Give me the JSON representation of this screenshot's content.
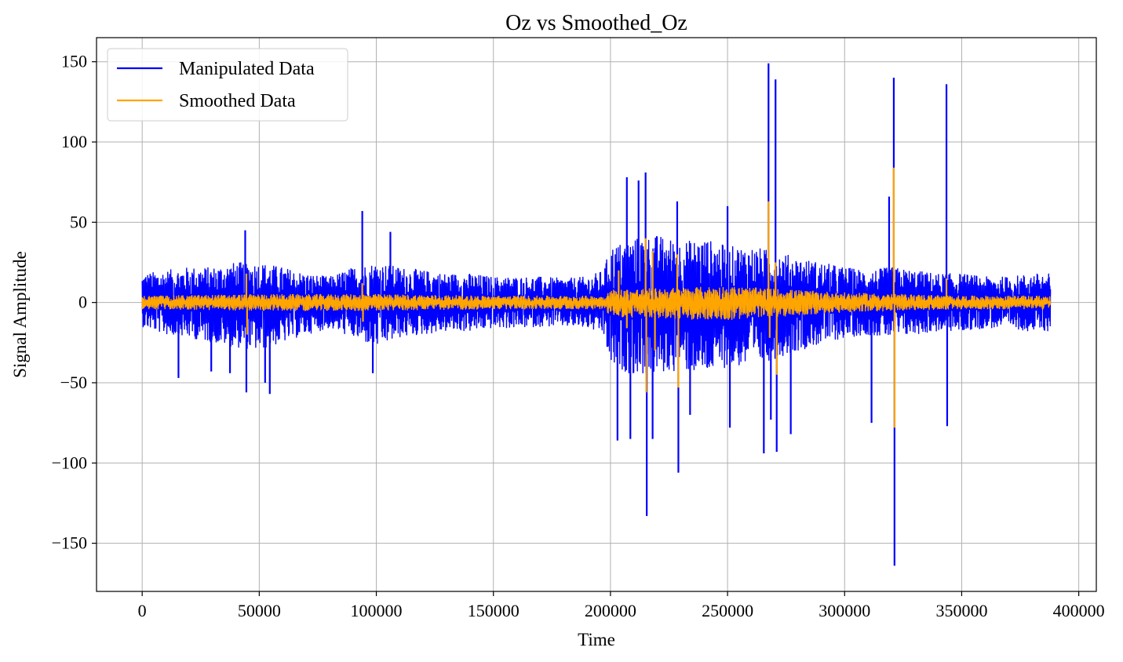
{
  "chart_data": {
    "type": "line",
    "title": "Oz vs Smoothed_Oz",
    "xlabel": "Time",
    "ylabel": "Signal Amplitude",
    "xlim": [
      -19500,
      407500
    ],
    "ylim": [
      -180,
      165
    ],
    "xticks": [
      0,
      50000,
      100000,
      150000,
      200000,
      250000,
      300000,
      350000,
      400000
    ],
    "yticks": [
      -150,
      -100,
      -50,
      0,
      50,
      100,
      150
    ],
    "xtick_labels": [
      "0",
      "50000",
      "100000",
      "150000",
      "200000",
      "250000",
      "300000",
      "350000",
      "400000"
    ],
    "ytick_labels": [
      "−150",
      "−100",
      "−50",
      "0",
      "50",
      "100",
      "150"
    ],
    "grid": true,
    "legend": "top-left",
    "x_range": [
      0,
      388000
    ],
    "series": [
      {
        "name": "Manipulated Data",
        "color": "#0000ff",
        "envelope": {
          "x": [
            0,
            10000,
            20000,
            30000,
            40000,
            50000,
            60000,
            70000,
            80000,
            90000,
            100000,
            110000,
            120000,
            130000,
            140000,
            150000,
            160000,
            170000,
            180000,
            190000,
            197000,
            200000,
            210000,
            220000,
            230000,
            240000,
            250000,
            260000,
            270000,
            280000,
            290000,
            300000,
            310000,
            320000,
            330000,
            340000,
            350000,
            360000,
            370000,
            380000,
            388000
          ],
          "upper": [
            18,
            20,
            22,
            22,
            25,
            25,
            22,
            18,
            16,
            22,
            25,
            22,
            20,
            18,
            18,
            16,
            16,
            16,
            15,
            16,
            20,
            35,
            40,
            42,
            38,
            40,
            35,
            35,
            32,
            28,
            25,
            22,
            20,
            22,
            20,
            18,
            18,
            16,
            16,
            18,
            18
          ],
          "lower": [
            -15,
            -20,
            -22,
            -25,
            -28,
            -30,
            -25,
            -20,
            -16,
            -22,
            -28,
            -22,
            -20,
            -18,
            -18,
            -16,
            -16,
            -15,
            -15,
            -16,
            -20,
            -40,
            -45,
            -45,
            -42,
            -45,
            -40,
            -40,
            -35,
            -30,
            -26,
            -22,
            -20,
            -22,
            -20,
            -18,
            -18,
            -16,
            -16,
            -18,
            -18
          ]
        },
        "spikes": [
          {
            "x": 15500,
            "y": -47
          },
          {
            "x": 29500,
            "y": -43
          },
          {
            "x": 37500,
            "y": -44
          },
          {
            "x": 44000,
            "y": 45
          },
          {
            "x": 44500,
            "y": -56
          },
          {
            "x": 54500,
            "y": -57
          },
          {
            "x": 52500,
            "y": -50
          },
          {
            "x": 94000,
            "y": 57
          },
          {
            "x": 106000,
            "y": 44
          },
          {
            "x": 98500,
            "y": -44
          },
          {
            "x": 203000,
            "y": -86
          },
          {
            "x": 207000,
            "y": 78
          },
          {
            "x": 208500,
            "y": -85
          },
          {
            "x": 212000,
            "y": 76
          },
          {
            "x": 215000,
            "y": 81
          },
          {
            "x": 215500,
            "y": -133
          },
          {
            "x": 218000,
            "y": -85
          },
          {
            "x": 228500,
            "y": 63
          },
          {
            "x": 229000,
            "y": -106
          },
          {
            "x": 234000,
            "y": -70
          },
          {
            "x": 250000,
            "y": 60
          },
          {
            "x": 251000,
            "y": -78
          },
          {
            "x": 265500,
            "y": -94
          },
          {
            "x": 267500,
            "y": 149
          },
          {
            "x": 268500,
            "y": -73
          },
          {
            "x": 270500,
            "y": 139
          },
          {
            "x": 271000,
            "y": -93
          },
          {
            "x": 277000,
            "y": -82
          },
          {
            "x": 311500,
            "y": -75
          },
          {
            "x": 319000,
            "y": 66
          },
          {
            "x": 321000,
            "y": 140
          },
          {
            "x": 321300,
            "y": -164
          },
          {
            "x": 343500,
            "y": 136
          },
          {
            "x": 343800,
            "y": -77
          }
        ]
      },
      {
        "name": "Smoothed Data",
        "color": "#ffa500",
        "envelope": {
          "x": [
            0,
            50000,
            100000,
            150000,
            197000,
            200000,
            250000,
            300000,
            350000,
            388000
          ],
          "upper": [
            4,
            5,
            5,
            4,
            4,
            8,
            10,
            6,
            4,
            4
          ],
          "lower": [
            -4,
            -5,
            -5,
            -4,
            -4,
            -9,
            -11,
            -6,
            -4,
            -4
          ]
        },
        "spikes": [
          {
            "x": 44500,
            "y": 18
          },
          {
            "x": 44800,
            "y": -20
          },
          {
            "x": 94000,
            "y": 12
          },
          {
            "x": 94300,
            "y": -12
          },
          {
            "x": 203500,
            "y": 20
          },
          {
            "x": 207000,
            "y": -16
          },
          {
            "x": 215000,
            "y": 40
          },
          {
            "x": 215300,
            "y": -56
          },
          {
            "x": 218000,
            "y": 32
          },
          {
            "x": 219000,
            "y": -30
          },
          {
            "x": 228500,
            "y": 30
          },
          {
            "x": 229000,
            "y": -53
          },
          {
            "x": 267500,
            "y": 63
          },
          {
            "x": 268000,
            "y": -22
          },
          {
            "x": 270500,
            "y": 25
          },
          {
            "x": 271000,
            "y": -45
          },
          {
            "x": 321000,
            "y": 84
          },
          {
            "x": 321300,
            "y": -78
          },
          {
            "x": 343500,
            "y": 15
          }
        ]
      }
    ]
  }
}
